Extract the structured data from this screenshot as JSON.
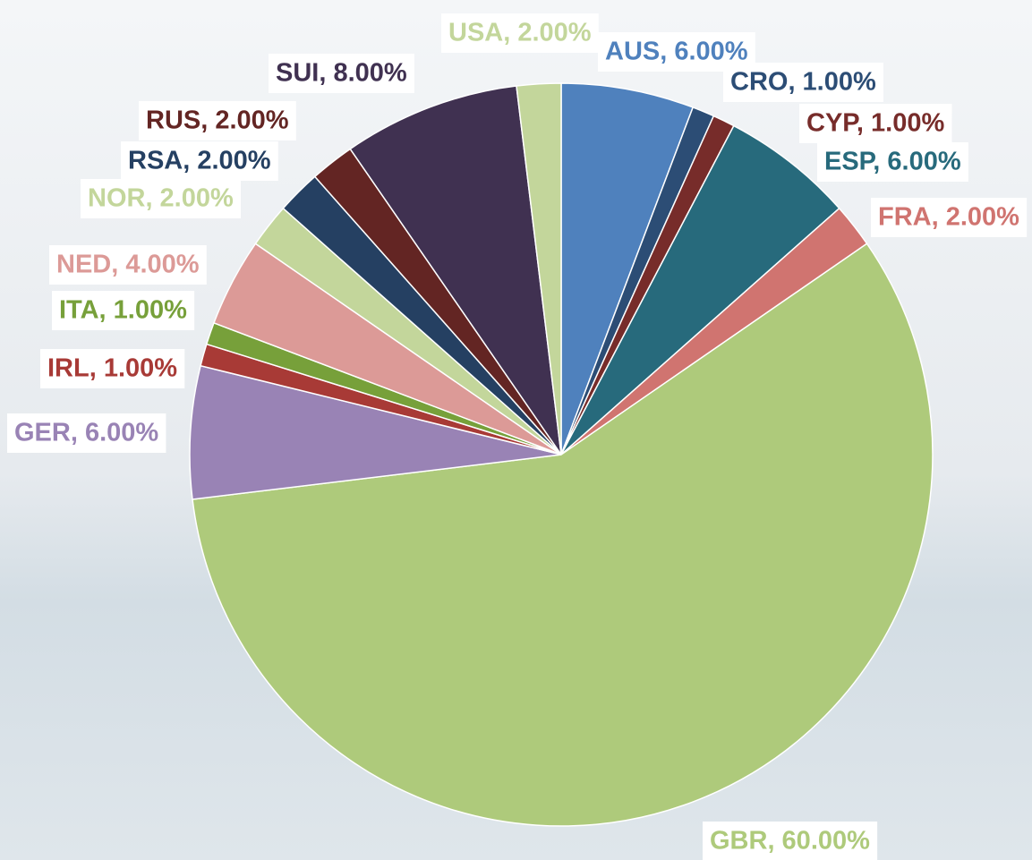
{
  "chart_data": {
    "type": "pie",
    "values": [
      6,
      1,
      1,
      6,
      2,
      60,
      6,
      1,
      1,
      4,
      2,
      2,
      2,
      8,
      2
    ],
    "value_labels": [
      "AUS, 6.00%",
      "CRO, 1.00%",
      "CYP, 1.00%",
      "ESP, 6.00%",
      "FRA, 2.00%",
      "GBR, 60.00%",
      "GER, 6.00%",
      "IRL, 1.00%",
      "ITA, 1.00%",
      "NED, 4.00%",
      "NOR, 2.00%",
      "RSA, 2.00%",
      "RUS, 2.00%",
      "SUI, 8.00%",
      "USA, 2.00%"
    ],
    "colors": [
      "#4f81bd",
      "#2c4d75",
      "#772c2a",
      "#276a7c",
      "#d07470",
      "#aeca7b",
      "#9983b5",
      "#a83a36",
      "#77a03a",
      "#dc9a97",
      "#c3d69b",
      "#254062",
      "#632523",
      "#403151",
      "#c3d69b"
    ]
  }
}
